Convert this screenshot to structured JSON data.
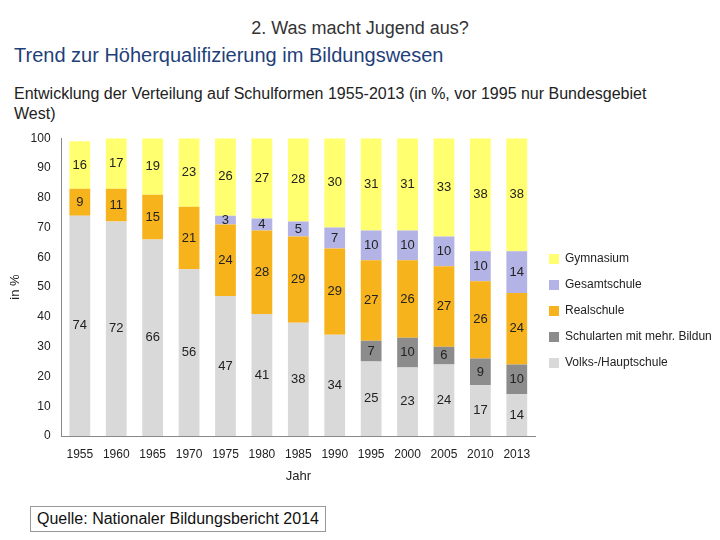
{
  "header": "2. Was macht Jugend aus?",
  "source": "Quelle: Nationaler Bildungsbericht 2014",
  "chart_data": {
    "type": "bar",
    "title": "Trend zur Höherqualifizierung im Bildungswesen",
    "subtitle": "Entwicklung der Verteilung auf Schulformen 1955-2013 (in %, vor 1995 nur Bundesgebiet West)",
    "x_label": "Jahr",
    "y_label": "in %",
    "categories": [
      "1955",
      "1960",
      "1965",
      "1970",
      "1975",
      "1980",
      "1985",
      "1990",
      "1995",
      "2000",
      "2005",
      "2010",
      "2013"
    ],
    "series": [
      {
        "name": "Volks-/Hauptschule",
        "color": "#d9d9d9",
        "values": [
          74,
          72,
          66,
          56,
          47,
          41,
          38,
          34,
          25,
          23,
          24,
          17,
          14
        ]
      },
      {
        "name": "Schularten mit mehr. Bildungsgängen",
        "color": "#8c8c8c",
        "values": [
          null,
          null,
          null,
          null,
          null,
          null,
          null,
          null,
          7,
          10,
          6,
          9,
          10
        ]
      },
      {
        "name": "Realschule",
        "color": "#f6b31b",
        "values": [
          9,
          11,
          15,
          21,
          24,
          28,
          29,
          29,
          27,
          26,
          27,
          26,
          24
        ]
      },
      {
        "name": "Gesamtschule",
        "color": "#b3b3e6",
        "values": [
          null,
          null,
          null,
          null,
          3,
          4,
          5,
          7,
          10,
          10,
          10,
          10,
          14
        ]
      },
      {
        "name": "Gymnasium",
        "color": "#ffff70",
        "values": [
          16,
          17,
          19,
          23,
          26,
          27,
          28,
          30,
          31,
          31,
          33,
          38,
          38
        ]
      }
    ],
    "ylim": [
      0,
      100
    ],
    "yticks": [
      0,
      10,
      20,
      30,
      40,
      50,
      60,
      70,
      80,
      90,
      100
    ],
    "stacked": true,
    "data_labels": true,
    "grid": false,
    "legend": "right"
  }
}
